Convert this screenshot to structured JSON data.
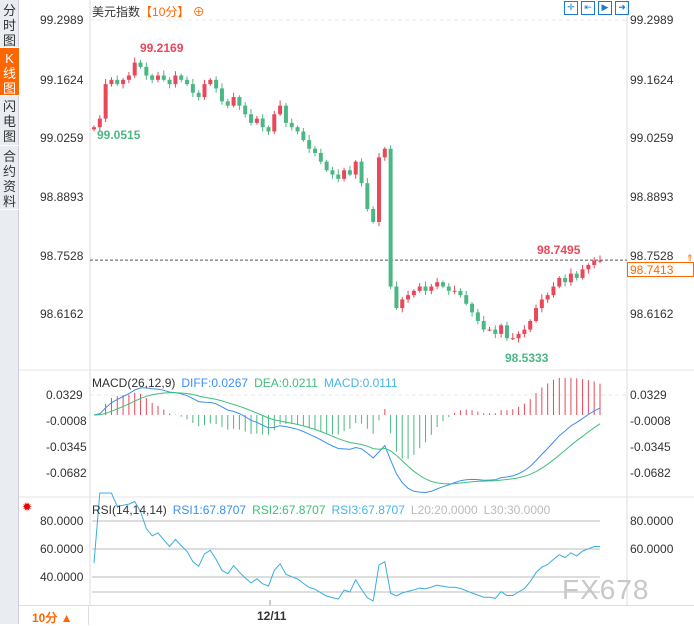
{
  "sidebar": {
    "tabs": [
      {
        "label": "分时图",
        "active": false
      },
      {
        "label": "K线图",
        "active": true
      },
      {
        "label": "闪电图",
        "active": false
      },
      {
        "label": "合约资料",
        "active": false
      }
    ]
  },
  "header": {
    "title": "美元指数",
    "period": "【10分】",
    "add_icon": "plus-circle-icon",
    "tools": [
      "crosshair-icon",
      "range-icon",
      "play-icon",
      "exit-icon"
    ]
  },
  "colors": {
    "up": "#e8485a",
    "down": "#4cb784",
    "diff": "#3b8ff0",
    "dea": "#3fc07a",
    "accent": "#ff6600"
  },
  "main": {
    "y_labels": [
      "99.2989",
      "99.1624",
      "99.0259",
      "98.8893",
      "98.7528",
      "98.6162"
    ],
    "high_label": "99.2169",
    "low_label": "99.0515",
    "recent_high_label": "98.7495",
    "recent_low_label": "98.5333",
    "current_price": "98.7413"
  },
  "macd": {
    "legend": {
      "name": "MACD(26,12,9)",
      "diff": "DIFF:0.0267",
      "dea": "DEA:0.0211",
      "macd": "MACD:0.0111"
    },
    "y_labels": [
      "0.0329",
      "-0.0008",
      "-0.0345",
      "-0.0682"
    ]
  },
  "rsi": {
    "legend": {
      "name": "RSI(14,14,14)",
      "rsi1": "RSI1:67.8707",
      "rsi2": "RSI2:67.8707",
      "rsi3": "RSI3:67.8707",
      "l20": "L20:20.0000",
      "l30": "L30:30.0000"
    },
    "y_labels": [
      "80.0000",
      "60.0000",
      "40.0000"
    ]
  },
  "bottom": {
    "period": "10分 ▲",
    "date": "12/11"
  },
  "watermark": "FX678",
  "chart_data": {
    "type": "candlestick",
    "y_range": [
      98.6162,
      99.2989
    ],
    "closes": [
      99.05,
      99.07,
      99.15,
      99.16,
      99.15,
      99.16,
      99.17,
      99.2,
      99.19,
      99.17,
      99.16,
      99.17,
      99.16,
      99.15,
      99.17,
      99.16,
      99.15,
      99.13,
      99.12,
      99.15,
      99.16,
      99.14,
      99.11,
      99.1,
      99.12,
      99.1,
      99.08,
      99.06,
      99.07,
      99.05,
      99.04,
      99.08,
      99.1,
      99.06,
      99.05,
      99.04,
      99.02,
      99.0,
      98.99,
      98.97,
      98.95,
      98.94,
      98.93,
      98.95,
      98.94,
      98.97,
      98.92,
      98.86,
      98.83,
      98.98,
      99.0,
      98.68,
      98.63,
      98.65,
      98.66,
      98.67,
      98.68,
      98.67,
      98.68,
      98.69,
      98.68,
      98.67,
      98.67,
      98.66,
      98.64,
      98.62,
      98.6,
      98.58,
      98.58,
      98.57,
      98.59,
      98.56,
      98.56,
      98.57,
      98.58,
      98.6,
      98.63,
      98.65,
      98.66,
      98.68,
      98.7,
      98.69,
      98.71,
      98.7,
      98.72,
      98.73,
      98.74,
      98.74
    ]
  }
}
